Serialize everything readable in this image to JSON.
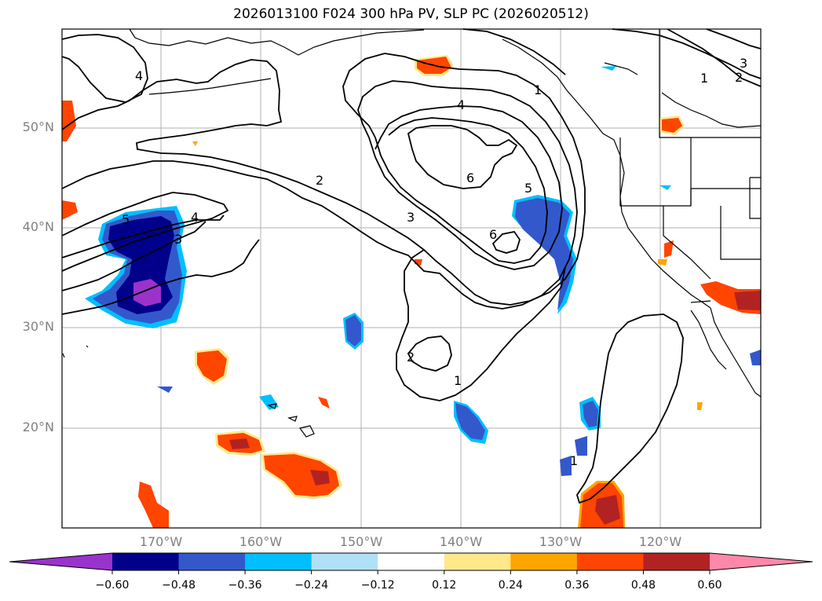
{
  "title": "2026013100 F024 300 hPa PV, SLP PC (2026020512)",
  "lat_labels": [
    "50°N",
    "40°N",
    "30°N",
    "20°N"
  ],
  "lon_labels": [
    "170°W",
    "160°W",
    "150°W",
    "140°W",
    "130°W",
    "120°W"
  ],
  "contour_labels": [
    "4",
    "5",
    "4",
    "3",
    "2",
    "4",
    "3",
    "6",
    "5",
    "6",
    "2",
    "1",
    "1",
    "1",
    "2",
    "3",
    "1"
  ],
  "colorbar": {
    "ticks": [
      "−0.60",
      "−0.48",
      "−0.36",
      "−0.24",
      "−0.12",
      "0.12",
      "0.24",
      "0.36",
      "0.48",
      "0.60"
    ],
    "colors": [
      "#9933cc",
      "#00008b",
      "#3358cc",
      "#00bfff",
      "#b0e0f8",
      "#ffffff",
      "#ffe88a",
      "#ffa500",
      "#ff4500",
      "#b22222",
      "#ff88aa"
    ]
  },
  "colors": {
    "neg_light": "#00bfff",
    "neg_mid": "#3358cc",
    "neg_dark": "#00008b",
    "neg_purple": "#9933cc",
    "pos_light": "#ffe88a",
    "pos_mid": "#ffa500",
    "pos_strong": "#ff4500",
    "pos_dark": "#b22222"
  }
}
